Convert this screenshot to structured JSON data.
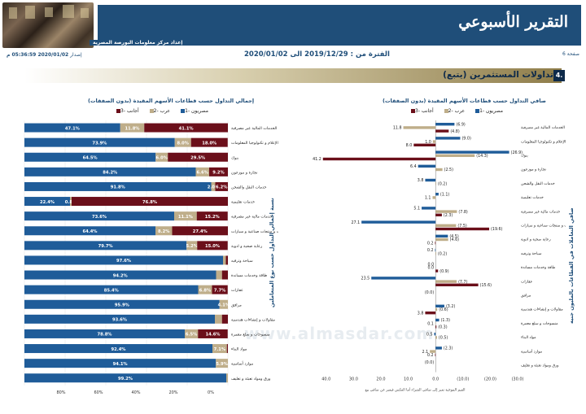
{
  "header": {
    "title": "التقرير الأسبوعي",
    "issuer": "إعداد مركز معلومات البورصة المصرية",
    "page_label": "صفحة 6",
    "period": "الفترة من : 2019/12/29 الى 2020/01/02",
    "release_label": "إصدار",
    "release_value": "2020/01/02 05:36:59 م"
  },
  "section": {
    "number": "4.",
    "title": "تداولات المستثمرين (يتبع)"
  },
  "colors": {
    "egyptians": "#1f5c99",
    "arabs": "#bfae8a",
    "foreigners": "#6b0f1a",
    "navy": "#1f4e79"
  },
  "chart_data": [
    {
      "type": "bar",
      "stacked": true,
      "orientation": "horizontal",
      "title": "إجمالي التداول حسب قطاعات الأسهم المقيدة (بدون الصفقات)",
      "ylabel": "نسبة إجمالي التداول حسب نوع المتعاملين",
      "legend": [
        "مصريون -1",
        "عرب -2",
        "أجانب -3"
      ],
      "legend_position": "top",
      "xlim": [
        0,
        100
      ],
      "ticks": [
        "80%",
        "60%",
        "40%",
        "20%",
        "0%"
      ],
      "categories": [
        "الخدمات المالية غير مصرفية",
        "الاتصالات و الإعلام و تكنولوجيا المعلومات",
        "بنوك",
        "تجارة و موزعون",
        "خدمات النقل والشحن",
        "خدمات تعليمية",
        "خدمات مالية غير مصرفية",
        "خدمات و منتجات صناعية و سيارات",
        "رعاية صحية و ادوية",
        "سياحة وترفيه",
        "طاقة وخدمات مساندة",
        "عقارات",
        "مرافق",
        "مقاولات و إنشاءات هندسية",
        "منسوجات و سلع معمرة",
        "مواد البناء",
        "موارد أساسية",
        "ورق ومواد تعبئة و تغليف"
      ],
      "series": [
        {
          "name": "مصريون",
          "values": [
            47.1,
            73.9,
            64.5,
            84.2,
            91.8,
            22.4,
            73.6,
            64.4,
            79.7,
            97.6,
            94.2,
            85.4,
            95.9,
            93.6,
            78.8,
            92.4,
            94.1,
            99.2
          ]
        },
        {
          "name": "عرب",
          "values": [
            11.8,
            8.0,
            6.0,
            6.6,
            2.0,
            0.8,
            11.1,
            8.2,
            5.2,
            1.4,
            2.9,
            6.8,
            4.1,
            3.5,
            6.5,
            7.1,
            5.9,
            0.8
          ]
        },
        {
          "name": "أجانب",
          "values": [
            41.1,
            18.0,
            29.5,
            9.2,
            6.2,
            76.8,
            15.2,
            27.4,
            15.0,
            1.0,
            2.9,
            7.7,
            0.0,
            2.9,
            14.6,
            0.5,
            0.0,
            0.0
          ]
        }
      ],
      "labels": [
        [
          "47.1%",
          "11.8%",
          "41.1%"
        ],
        [
          "73.9%",
          "8.0%",
          "18.0%"
        ],
        [
          "64.5%",
          "6.0%",
          "29.5%"
        ],
        [
          "84.2%",
          "6.6%",
          "9.2%"
        ],
        [
          "91.8%",
          "2.0%",
          "6.2%"
        ],
        [
          "22.4%",
          "0.8%",
          "76.8%"
        ],
        [
          "73.6%",
          "11.1%",
          "15.2%"
        ],
        [
          "64.4%",
          "8.2%",
          "27.4%"
        ],
        [
          "79.7%",
          "5.2%",
          "15.0%"
        ],
        [
          "97.6%",
          "",
          ""
        ],
        [
          "94.2%",
          "",
          ""
        ],
        [
          "85.4%",
          "6.8%",
          "7.7%"
        ],
        [
          "95.9%",
          "4.1%",
          ""
        ],
        [
          "93.6%",
          "",
          ""
        ],
        [
          "78.8%",
          "6.5%",
          "14.6%"
        ],
        [
          "92.4%",
          "7.1%",
          ""
        ],
        [
          "94.1%",
          "5.9%",
          ""
        ],
        [
          "99.2%",
          "",
          ""
        ]
      ]
    },
    {
      "type": "bar",
      "orientation": "horizontal",
      "grouped": true,
      "title": "صافي التداول حسب قطاعات الأسهم المقيدة (بدون الصفقات)",
      "ylabel": "صافي التعاملات في القطاعات بالمليون جنيه",
      "xlabel": "القيم الموجبة تعبر إلى صافي الشراء أما العكس فيعبر عن صافي بيع",
      "legend": [
        "مصريون -1",
        "عرب -2",
        "أجانب -3"
      ],
      "legend_position": "top",
      "xlim": [
        -30,
        45
      ],
      "ticks": [
        "40.0",
        "30.0",
        "20.0",
        "10.0",
        "0.0",
        "(10.0)",
        "(20.0)",
        "(30.0)"
      ],
      "categories": [
        "الخدمات المالية غير مصرفية",
        "الاتصالات و الإعلام و تكنولوجيا المعلومات",
        "بنوك",
        "تجارة و موزعون",
        "خدمات النقل والشحن",
        "خدمات تعليمية",
        "خدمات مالية غير مصرفية",
        "خدمات و منتجات صناعية و سيارات",
        "رعاية صحية و ادوية",
        "سياحة وترفيه",
        "طاقة وخدمات مساندة",
        "عقارات",
        "مرافق",
        "مقاولات و إنشاءات هندسية",
        "منسوجات و سلع معمرة",
        "مواد البناء",
        "موارد أساسية",
        "ورق ومواد تعبئة و تغليف"
      ],
      "series": [
        {
          "name": "مصريون",
          "values": [
            -6.9,
            -9.0,
            -26.9,
            6.4,
            3.8,
            -1.1,
            5.1,
            27.1,
            -4.5,
            0.2,
            0.0,
            23.5,
            0.0,
            -3.2,
            -1.3,
            0.5,
            -2.3,
            0.0
          ]
        },
        {
          "name": "عرب",
          "values": [
            11.8,
            1.0,
            -14.3,
            -2.5,
            -0.2,
            1.1,
            -7.8,
            -7.5,
            -4.6,
            -0.2,
            0.0,
            -7.7,
            0.0,
            -0.6,
            0.1,
            -0.5,
            2.1,
            0.0
          ]
        },
        {
          "name": "أجانب",
          "values": [
            -4.8,
            8.0,
            41.2,
            0.0,
            0.0,
            0.0,
            -2.3,
            -19.6,
            0.2,
            0.0,
            -0.9,
            -15.6,
            0.0,
            3.8,
            -0.3,
            0.0,
            0.2,
            0.0
          ]
        }
      ],
      "labels": [
        [
          "(6.9)",
          "11.8",
          "(4.8)"
        ],
        [
          "(9.0)",
          "1.0",
          "8.0"
        ],
        [
          "(26.9)",
          "(14.3)",
          "41.2"
        ],
        [
          "6.4",
          "(2.5)",
          ""
        ],
        [
          "3.8",
          "(0.2)",
          ""
        ],
        [
          "(1.1)",
          "1.1",
          ""
        ],
        [
          "5.1",
          "(7.8)",
          "(2.3)"
        ],
        [
          "27.1",
          "(7.5)",
          "(19.6)"
        ],
        [
          "(4.5)",
          "(4.6)",
          "0.2"
        ],
        [
          "0.2",
          "(0.2)",
          ""
        ],
        [
          "0.0",
          "0.0",
          "(0.9)"
        ],
        [
          "23.5",
          "(7.7)",
          "(15.6)"
        ],
        [
          "(0.0)",
          "",
          ""
        ],
        [
          "(3.2)",
          "(0.6)",
          "3.8"
        ],
        [
          "(1.3)",
          "0.1",
          "(0.3)"
        ],
        [
          "0.5",
          "(0.5)",
          ""
        ],
        [
          "(2.3)",
          "2.1",
          "0.2"
        ],
        [
          "(0.0)",
          "",
          ""
        ]
      ]
    }
  ],
  "watermark": {
    "logo": "المصدر",
    "url": "www.almasdar.com"
  }
}
